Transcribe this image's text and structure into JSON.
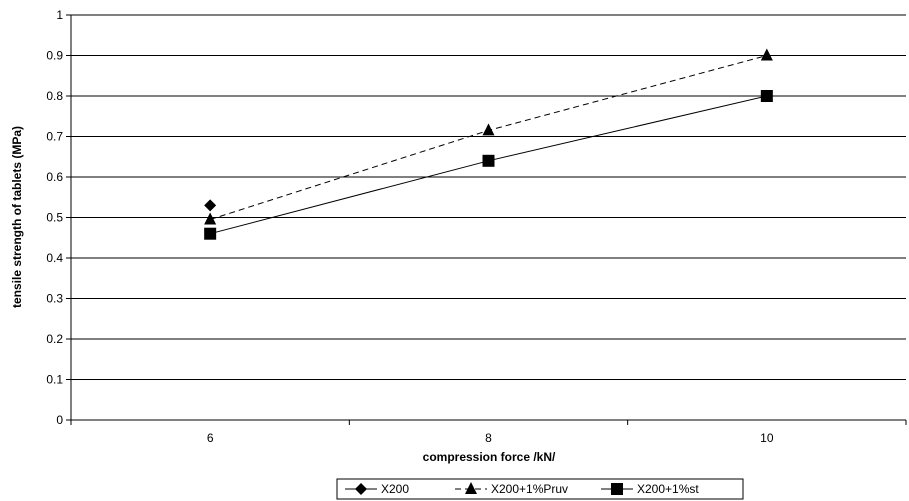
{
  "chart_data": {
    "type": "line",
    "title": "",
    "xlabel": "compression force /kN/",
    "ylabel": "tensile strength of tablets (MPa)",
    "categories": [
      "6",
      "8",
      "10"
    ],
    "ylim": [
      0,
      1
    ],
    "yticks": [
      "0",
      "0.1",
      "0.2",
      "0.3",
      "0.4",
      "0.5",
      "0.6",
      "0.7",
      "0.8",
      "0.9",
      "1"
    ],
    "grid": "horizontal",
    "legend_position": "bottom",
    "series": [
      {
        "name": "X200",
        "marker": "diamond",
        "line": "none",
        "values": [
          0.53,
          null,
          null
        ]
      },
      {
        "name": "X200+1%Pruv",
        "marker": "triangle",
        "line": "dashed",
        "values": [
          0.495,
          0.715,
          0.9
        ]
      },
      {
        "name": "X200+1%st",
        "marker": "square",
        "line": "solid",
        "values": [
          0.46,
          0.64,
          0.8
        ]
      }
    ]
  }
}
